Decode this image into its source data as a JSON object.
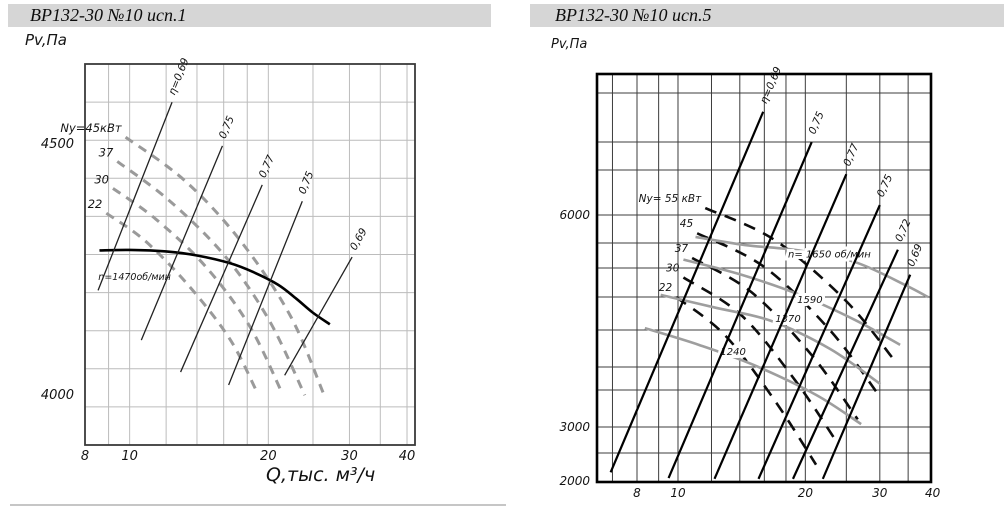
{
  "page": {
    "background": "#ffffff",
    "grid_color_left": "#b9b9b9",
    "grid_color_right": "#3c3c3c",
    "power_curve_color_left": "#9a9a9a",
    "pressure_curve_color_right": "#9e9e9e",
    "curve_color_black": "#0d0d0d"
  },
  "chart_data": [
    {
      "type": "line",
      "title": "ВР132-30 №10 исп.1",
      "ylabel": "Pv,Па",
      "xlabel": "Q,тыс. м³/ч",
      "x_scale": "log",
      "y_scale": "log",
      "legend_position": "none",
      "grid": true,
      "x_ticks": [
        8,
        10,
        20,
        30,
        40
      ],
      "y_ticks": [
        4500,
        4000
      ],
      "x_gridlines": [
        8,
        9,
        10,
        12,
        14,
        16,
        18,
        20,
        25,
        30,
        35,
        40
      ],
      "x_range": [
        8,
        41
      ],
      "y_range": [
        3915,
        4665
      ],
      "pressure_curves": [
        {
          "label": "n=1470об/мин",
          "rpm": 1470,
          "label_at": [
            8.55,
            4243
          ],
          "points": [
            [
              8.6,
              4281
            ],
            [
              10,
              4282
            ],
            [
              12,
              4279
            ],
            [
              14,
              4271
            ],
            [
              16.5,
              4256
            ],
            [
              18.5,
              4239
            ],
            [
              21,
              4214
            ],
            [
              23,
              4187
            ],
            [
              25,
              4160
            ],
            [
              27.2,
              4138
            ]
          ]
        }
      ],
      "power_curves": [
        {
          "label": "Ny=45кВт",
          "kw": 45,
          "points": [
            [
              9.8,
              4510
            ],
            [
              13.2,
              4420
            ],
            [
              17.4,
              4300
            ],
            [
              22.3,
              4155
            ],
            [
              26.3,
              4010
            ]
          ]
        },
        {
          "label": "37",
          "kw": 37,
          "points": [
            [
              9.4,
              4460
            ],
            [
              12.2,
              4380
            ],
            [
              16.1,
              4270
            ],
            [
              20.1,
              4145
            ],
            [
              24.0,
              4005
            ]
          ]
        },
        {
          "label": "30",
          "kw": 30,
          "points": [
            [
              9.2,
              4405
            ],
            [
              11.4,
              4343
            ],
            [
              14.6,
              4250
            ],
            [
              18.2,
              4135
            ],
            [
              21.4,
              4010
            ]
          ]
        },
        {
          "label": "22",
          "kw": 22,
          "points": [
            [
              8.9,
              4355
            ],
            [
              10.8,
              4300
            ],
            [
              13.5,
              4210
            ],
            [
              16.5,
              4110
            ],
            [
              18.8,
              4015
            ]
          ]
        }
      ],
      "efficiency_lines": [
        {
          "label": "η=0,69",
          "value": 0.69,
          "from": [
            8.54,
            4203
          ],
          "to": [
            12.36,
            4583
          ]
        },
        {
          "label": "0,75",
          "value": 0.75,
          "from": [
            10.6,
            4108
          ],
          "to": [
            15.9,
            4492
          ]
        },
        {
          "label": "0,77",
          "value": 0.77,
          "from": [
            12.9,
            4048
          ],
          "to": [
            19.4,
            4412
          ]
        },
        {
          "label": "0,75",
          "value": 0.75,
          "from": [
            16.4,
            4024
          ],
          "to": [
            23.7,
            4379
          ]
        },
        {
          "label": "0,69",
          "value": 0.69,
          "from": [
            21.7,
            4042
          ],
          "to": [
            30.4,
            4268
          ]
        }
      ]
    },
    {
      "type": "line",
      "title": "ВР132-30 №10 исп.5",
      "ylabel": "Pv,Па",
      "x_scale": "log",
      "y_scale": "log",
      "legend_position": "none",
      "grid": true,
      "x_ticks": [
        8,
        10,
        20,
        30,
        40
      ],
      "y_ticks": [
        6000,
        3000,
        2000
      ],
      "x_gridlines": [
        7,
        8,
        9,
        10,
        12,
        14,
        16,
        18,
        20,
        25,
        30,
        35
      ],
      "x_range": [
        6.4,
        40
      ],
      "y_range": [
        2000,
        10800
      ],
      "pressure_curves": [
        {
          "label": "n= 1650 об/мин",
          "rpm": 1650,
          "label_at": [
            22.8,
            5100
          ],
          "points": [
            [
              11.0,
              5480
            ],
            [
              14.4,
              5300
            ],
            [
              19.4,
              5180
            ],
            [
              26.2,
              4940
            ],
            [
              34.4,
              4495
            ],
            [
              39.0,
              4275
            ]
          ]
        },
        {
          "label": "1590",
          "rpm": 1590,
          "label_at": [
            20.5,
            4225
          ],
          "points": [
            [
              10.3,
              4990
            ],
            [
              14.1,
              4690
            ],
            [
              19.4,
              4315
            ],
            [
              26.2,
              3890
            ],
            [
              33.5,
              3510
            ]
          ]
        },
        {
          "label": "1370",
          "rpm": 1370,
          "label_at": [
            18.2,
            3905
          ],
          "points": [
            [
              9.1,
              4315
            ],
            [
              12.3,
              4090
            ],
            [
              16.6,
              3875
            ],
            [
              22.9,
              3450
            ],
            [
              30.1,
              2985
            ]
          ]
        },
        {
          "label": "1240",
          "rpm": 1240,
          "label_at": [
            13.5,
            3410
          ],
          "points": [
            [
              8.35,
              3760
            ],
            [
              11.2,
              3510
            ],
            [
              15.1,
              3230
            ],
            [
              21.2,
              2855
            ],
            [
              27.1,
              2530
            ]
          ]
        }
      ],
      "power_curves": [
        {
          "label": "Ny= 55 кВт",
          "kw": 55,
          "points": [
            [
              11.6,
              6175
            ],
            [
              16.9,
              5415
            ],
            [
              24.9,
              4215
            ],
            [
              32.4,
              3300
            ]
          ]
        },
        {
          "label": "45",
          "kw": 45,
          "points": [
            [
              11.1,
              5565
            ],
            [
              16.0,
              4840
            ],
            [
              22.9,
              3725
            ],
            [
              29.8,
              2855
            ]
          ]
        },
        {
          "label": "37",
          "kw": 37,
          "points": [
            [
              10.8,
              5025
            ],
            [
              14.9,
              4365
            ],
            [
              20.7,
              3365
            ],
            [
              26.6,
              2580
            ]
          ]
        },
        {
          "label": "30",
          "kw": 30,
          "points": [
            [
              10.3,
              4635
            ],
            [
              14.1,
              3970
            ],
            [
              18.9,
              3035
            ],
            [
              23.9,
              2330
            ]
          ]
        },
        {
          "label": "22",
          "kw": 22,
          "points": [
            [
              9.9,
              4275
            ],
            [
              12.9,
              3655
            ],
            [
              16.9,
              2795
            ],
            [
              21.2,
              2140
            ]
          ]
        }
      ],
      "efficiency_lines": [
        {
          "label": "η=0,69",
          "value": 0.69,
          "from": [
            6.93,
            2073
          ],
          "to": [
            15.9,
            9190
          ]
        },
        {
          "label": "0,75",
          "value": 0.75,
          "from": [
            9.5,
            2025
          ],
          "to": [
            20.7,
            8105
          ]
        },
        {
          "label": "0,77",
          "value": 0.77,
          "from": [
            12.2,
            2018
          ],
          "to": [
            25.0,
            7100
          ]
        },
        {
          "label": "0,75",
          "value": 0.75,
          "from": [
            15.5,
            2018
          ],
          "to": [
            30.0,
            6250
          ]
        },
        {
          "label": "0,72",
          "value": 0.72,
          "from": [
            18.7,
            2018
          ],
          "to": [
            33.1,
            5200
          ]
        },
        {
          "label": "0,69",
          "value": 0.69,
          "from": [
            22.0,
            2018
          ],
          "to": [
            35.4,
            4690
          ]
        }
      ]
    }
  ]
}
